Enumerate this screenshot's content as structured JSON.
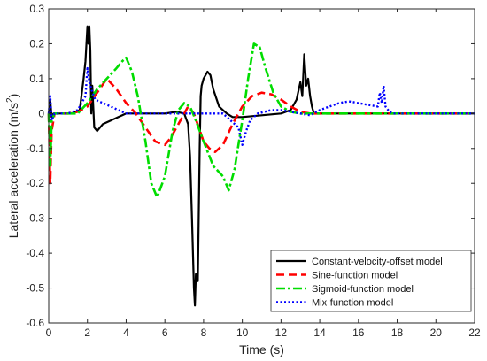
{
  "chart_data": {
    "type": "line",
    "xlabel": "Time (s)",
    "ylabel": "Lateral acceleration (m/s",
    "ylabel_sup": "2",
    "ylabel_end": ")",
    "xlim": [
      0,
      22
    ],
    "ylim": [
      -0.6,
      0.3
    ],
    "xticks": [
      0,
      2,
      4,
      6,
      8,
      10,
      12,
      14,
      16,
      18,
      20,
      22
    ],
    "yticks": [
      -0.6,
      -0.5,
      -0.4,
      -0.3,
      -0.2,
      -0.1,
      0,
      0.1,
      0.2,
      0.3
    ],
    "ytick_labels": [
      "-0.6",
      "-0.5",
      "-0.4",
      "-0.3",
      "-0.2",
      "-0.1",
      "0",
      "0.1",
      "0.2",
      "0.3"
    ],
    "grid": false,
    "legend_position": "bottom-right",
    "series": [
      {
        "name": "Constant-velocity-offset model",
        "color": "#000000",
        "dash": "solid",
        "x": [
          0,
          0.08,
          0.15,
          0.25,
          0.6,
          1.2,
          1.6,
          1.8,
          1.9,
          2.0,
          2.05,
          2.1,
          2.15,
          2.2,
          2.25,
          2.35,
          2.5,
          2.8,
          3.2,
          3.6,
          4.0,
          4.5,
          5.0,
          6.0,
          6.6,
          7.0,
          7.2,
          7.3,
          7.4,
          7.5,
          7.55,
          7.6,
          7.7,
          7.8,
          7.85,
          7.9,
          8.0,
          8.2,
          8.35,
          8.5,
          8.8,
          9.2,
          9.5,
          10.0,
          11.0,
          12.0,
          12.5,
          12.8,
          13.0,
          13.1,
          13.2,
          13.3,
          13.4,
          13.5,
          13.6,
          13.7,
          14.0,
          15.0,
          16.0,
          18.0,
          20.0,
          22.0
        ],
        "y": [
          0.0,
          0.04,
          -0.01,
          0.0,
          0.0,
          0.0,
          0.01,
          0.1,
          0.15,
          0.25,
          0.2,
          0.25,
          0.18,
          0.0,
          0.08,
          -0.04,
          -0.05,
          -0.03,
          -0.02,
          -0.01,
          0.0,
          0.0,
          0.0,
          0.0,
          0.005,
          0.0,
          -0.03,
          -0.12,
          -0.3,
          -0.5,
          -0.55,
          -0.46,
          -0.48,
          -0.1,
          0.05,
          0.08,
          0.1,
          0.12,
          0.11,
          0.07,
          0.02,
          0.0,
          -0.01,
          -0.01,
          -0.005,
          0.0,
          0.01,
          0.04,
          0.09,
          0.05,
          0.17,
          0.08,
          0.1,
          0.05,
          0.02,
          0.0,
          0.0,
          0.0,
          0.0,
          0.0,
          0.0,
          0.0
        ]
      },
      {
        "name": "Sine-function model",
        "color": "#ff0000",
        "dash": "dash",
        "x": [
          0,
          0.08,
          0.15,
          0.3,
          1.0,
          1.5,
          2.0,
          2.5,
          3.0,
          3.5,
          4.0,
          4.5,
          5.0,
          5.5,
          6.0,
          6.3,
          6.6,
          6.9,
          7.2,
          7.5,
          8.0,
          8.3,
          8.6,
          9.0,
          9.5,
          10.0,
          10.5,
          11.0,
          11.5,
          12.0,
          12.5,
          13.0,
          13.5,
          14.0,
          15.0,
          18.0,
          22.0
        ],
        "y": [
          0.0,
          -0.2,
          -0.05,
          0.0,
          0.0,
          0.005,
          0.02,
          0.06,
          0.1,
          0.07,
          0.03,
          0.0,
          -0.04,
          -0.08,
          -0.09,
          -0.07,
          -0.04,
          -0.01,
          0.02,
          0.0,
          -0.08,
          -0.1,
          -0.11,
          -0.09,
          -0.03,
          0.02,
          0.05,
          0.06,
          0.055,
          0.04,
          0.02,
          0.005,
          0.0,
          0.0,
          0.0,
          0.0,
          0.0
        ]
      },
      {
        "name": "Sigmoid-function model",
        "color": "#00dd00",
        "dash": "dashdot",
        "x": [
          0,
          0.08,
          0.15,
          0.3,
          1.0,
          1.5,
          2.0,
          2.5,
          3.0,
          3.5,
          3.8,
          4.0,
          4.3,
          4.6,
          5.0,
          5.3,
          5.6,
          6.0,
          6.4,
          6.7,
          7.0,
          7.3,
          7.6,
          8.0,
          8.5,
          9.0,
          9.3,
          9.6,
          10.0,
          10.3,
          10.6,
          10.9,
          11.2,
          11.6,
          12.0,
          12.5,
          13.0,
          14.0,
          16.0,
          18.0,
          22.0
        ],
        "y": [
          0.0,
          -0.15,
          -0.02,
          0.0,
          0.0,
          0.0,
          0.03,
          0.07,
          0.1,
          0.13,
          0.15,
          0.16,
          0.12,
          0.05,
          -0.08,
          -0.2,
          -0.24,
          -0.18,
          -0.05,
          0.01,
          0.03,
          0.02,
          -0.02,
          -0.08,
          -0.15,
          -0.18,
          -0.22,
          -0.16,
          -0.02,
          0.1,
          0.2,
          0.19,
          0.13,
          0.06,
          0.02,
          0.005,
          0.0,
          0.0,
          0.0,
          0.0,
          0.0
        ]
      },
      {
        "name": "Mix-function model",
        "color": "#0000ff",
        "dash": "dot",
        "x": [
          0,
          0.08,
          0.15,
          0.3,
          1.0,
          1.5,
          1.9,
          2.0,
          2.1,
          2.2,
          2.4,
          2.8,
          3.2,
          3.6,
          4.0,
          5.0,
          6.0,
          7.0,
          8.0,
          9.0,
          9.8,
          10.0,
          10.2,
          10.4,
          10.8,
          11.5,
          12.0,
          13.0,
          13.5,
          14.0,
          14.5,
          15.0,
          15.5,
          16.0,
          16.5,
          17.0,
          17.1,
          17.2,
          17.3,
          17.4,
          17.6,
          17.8,
          18.0,
          20.0,
          22.0
        ],
        "y": [
          0.0,
          0.05,
          -0.02,
          0.0,
          0.0,
          0.01,
          0.05,
          0.13,
          0.09,
          0.07,
          0.04,
          0.03,
          0.02,
          0.01,
          0.0,
          0.0,
          0.0,
          0.0,
          0.0,
          0.0,
          -0.04,
          -0.09,
          -0.05,
          -0.02,
          0.0,
          0.01,
          0.01,
          0.0,
          -0.005,
          0.01,
          0.02,
          0.03,
          0.035,
          0.03,
          0.025,
          0.02,
          0.06,
          0.03,
          0.08,
          0.02,
          0.005,
          0.0,
          0.0,
          0.0,
          0.0
        ]
      }
    ]
  }
}
